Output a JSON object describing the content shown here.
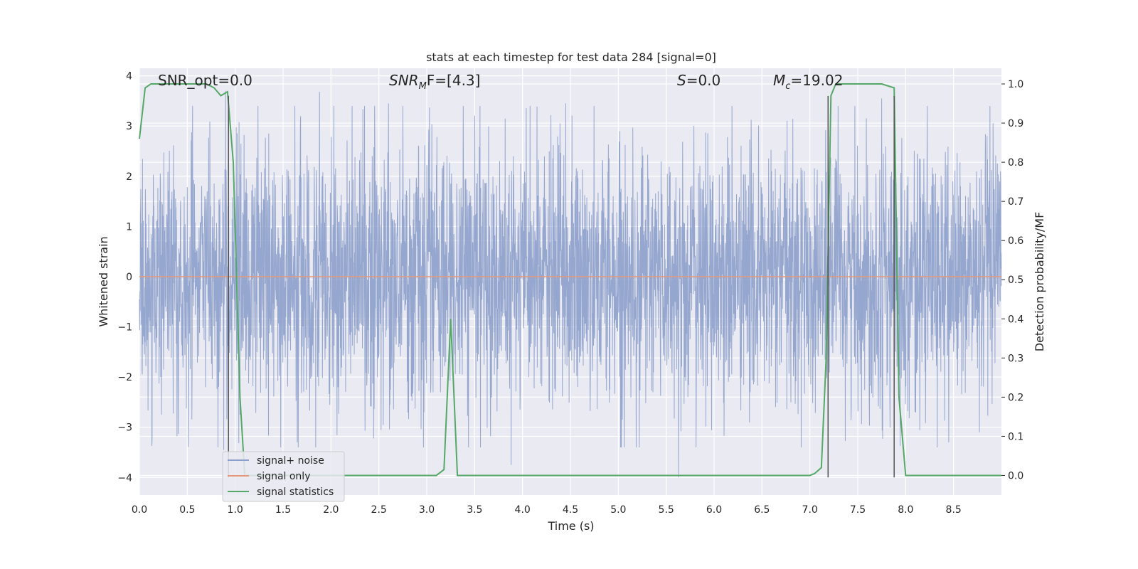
{
  "chart_data": {
    "type": "line",
    "title": "stats at each timestep for test data 284 [signal=0]",
    "xlabel": "Time (s)",
    "ylabel": "Whitened strain",
    "y2label": "Detection probability/MF",
    "xlim": [
      0.0,
      9.0
    ],
    "ylim": [
      -4.35,
      4.15
    ],
    "y2lim": [
      -0.05,
      1.04
    ],
    "x_ticks": [
      "0.0",
      "0.5",
      "1.0",
      "1.5",
      "2.0",
      "2.5",
      "3.0",
      "3.5",
      "4.0",
      "4.5",
      "5.0",
      "5.5",
      "6.0",
      "6.5",
      "7.0",
      "7.5",
      "8.0",
      "8.5"
    ],
    "y_ticks": [
      "4",
      "3",
      "2",
      "1",
      "0",
      "−1",
      "−2",
      "−3",
      "−4"
    ],
    "y2_ticks": [
      "1.0",
      "0.9",
      "0.8",
      "0.7",
      "0.6",
      "0.5",
      "0.4",
      "0.3",
      "0.2",
      "0.1",
      "0.0"
    ],
    "grid": true,
    "legend_position": "lower-left",
    "annotations": [
      {
        "text": "SNR_opt=0.0"
      },
      {
        "text": "SNR",
        "sub": "M",
        "suffix": "F=[4.3]"
      },
      {
        "text": "S",
        "suffix": "=0.0"
      },
      {
        "text": "M",
        "sub": "c",
        "suffix": "=19.02"
      }
    ],
    "series": [
      {
        "name": "signal+ noise",
        "color": "#8da0cb",
        "axis": "left",
        "kind": "noise",
        "sample_rate_hz": 2048,
        "duration_s": 9.0,
        "envelope_typical": 1.4,
        "peaks": [
          {
            "x": 0.9,
            "y": 3.7
          },
          {
            "x": 1.88,
            "y": 3.68
          },
          {
            "x": 2.6,
            "y": 3.45
          },
          {
            "x": 4.45,
            "y": 3.45
          },
          {
            "x": 7.75,
            "y": 3.55
          },
          {
            "x": 0.88,
            "y": -3.45
          },
          {
            "x": 1.84,
            "y": -3.4
          },
          {
            "x": 3.88,
            "y": -3.75
          },
          {
            "x": 5.63,
            "y": -4.0
          },
          {
            "x": 8.45,
            "y": -3.3
          },
          {
            "x": 8.77,
            "y": -3.1
          }
        ]
      },
      {
        "name": "signal only",
        "color": "#e5997a",
        "axis": "left",
        "x": [
          0.0,
          9.0
        ],
        "y": [
          0.0,
          0.0
        ]
      },
      {
        "name": "signal statistics",
        "color": "#55a868",
        "axis": "right",
        "x": [
          0.0,
          0.06,
          0.12,
          0.5,
          0.7,
          0.78,
          0.85,
          0.92,
          0.98,
          1.05,
          1.1,
          1.15,
          1.25,
          1.5,
          2.0,
          2.5,
          3.1,
          3.18,
          3.25,
          3.32,
          3.4,
          4.0,
          5.0,
          6.0,
          6.5,
          7.0,
          7.05,
          7.12,
          7.17,
          7.22,
          7.27,
          7.35,
          7.6,
          7.75,
          7.88,
          7.93,
          8.0,
          8.05,
          8.5,
          9.0
        ],
        "y": [
          0.86,
          0.99,
          1.0,
          1.0,
          1.0,
          0.99,
          0.97,
          0.98,
          0.8,
          0.2,
          0.0,
          0.0,
          0.0,
          0.0,
          0.0,
          0.0,
          0.0,
          0.015,
          0.4,
          0.0,
          0.0,
          0.0,
          0.0,
          0.0,
          0.0,
          0.0,
          0.005,
          0.02,
          0.3,
          0.97,
          1.0,
          1.0,
          1.0,
          1.0,
          0.99,
          0.2,
          0.0,
          0.0,
          0.0,
          0.0
        ]
      }
    ],
    "vertical_markers": [
      {
        "x": 0.93,
        "y_top": 3.6,
        "y_bottom": -4.0
      },
      {
        "x": 7.19,
        "y_top": 3.6,
        "y_bottom": -4.0
      },
      {
        "x": 7.88,
        "y_top": 3.6,
        "y_bottom": -4.0
      }
    ]
  }
}
